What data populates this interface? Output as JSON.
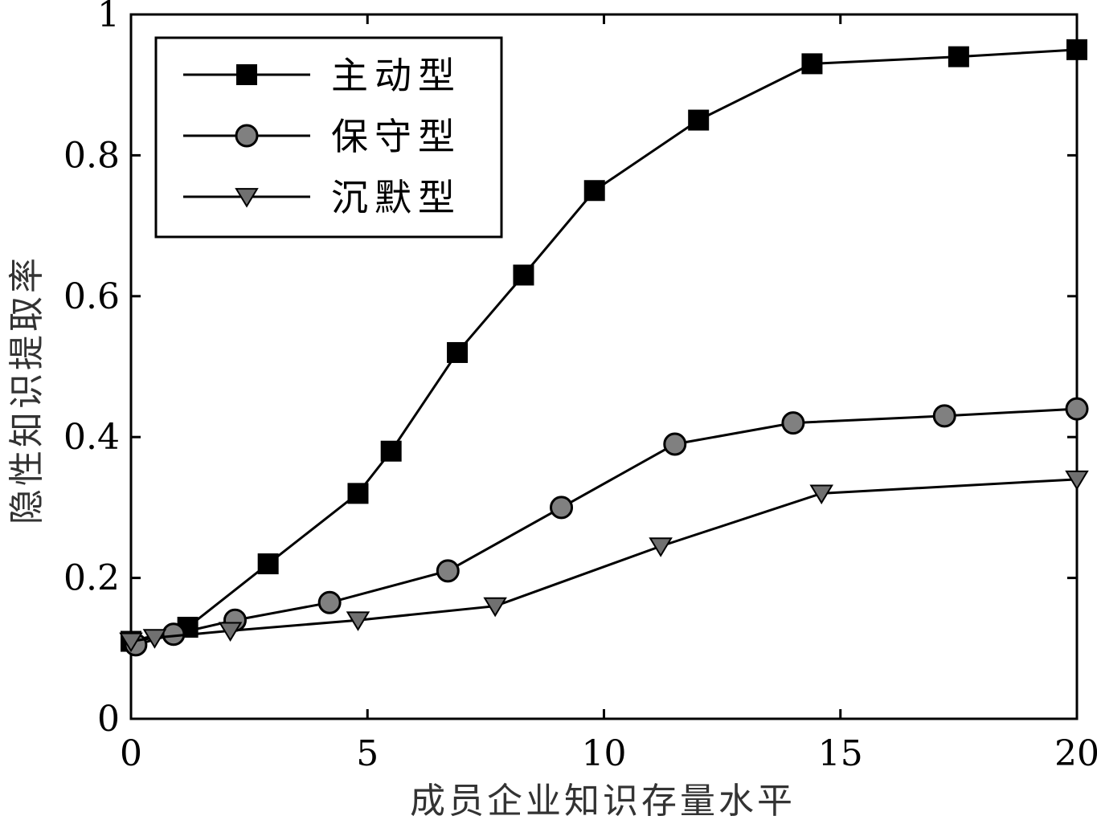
{
  "chart_data": {
    "type": "line",
    "title": "",
    "xlabel": "成员企业知识存量水平",
    "ylabel": "隐性知识提取率",
    "xlim": [
      0,
      20
    ],
    "ylim": [
      0,
      1
    ],
    "xticks": [
      0,
      5,
      10,
      15,
      20
    ],
    "xtick_labels": [
      "0",
      "5",
      "10",
      "15",
      "20"
    ],
    "yticks": [
      0,
      0.2,
      0.4,
      0.6,
      0.8,
      1
    ],
    "ytick_labels": [
      "0",
      "0.2",
      "0.4",
      "0.6",
      "0.8",
      "1"
    ],
    "grid": false,
    "legend_position": "top-left",
    "series": [
      {
        "name": "主动型",
        "marker": "square",
        "marker_color": "#000000",
        "line_color": "#000000",
        "x": [
          0,
          1.2,
          2.9,
          4.8,
          5.5,
          6.9,
          8.3,
          9.8,
          12.0,
          14.4,
          17.5,
          20.0
        ],
        "y": [
          0.11,
          0.13,
          0.22,
          0.32,
          0.38,
          0.52,
          0.63,
          0.75,
          0.85,
          0.93,
          0.94,
          0.95
        ]
      },
      {
        "name": "保守型",
        "marker": "circle",
        "marker_color": "#808080",
        "line_color": "#000000",
        "x": [
          0.1,
          0.9,
          2.2,
          4.2,
          6.7,
          9.1,
          11.5,
          14.0,
          17.2,
          20.0
        ],
        "y": [
          0.105,
          0.12,
          0.14,
          0.165,
          0.21,
          0.3,
          0.39,
          0.42,
          0.43,
          0.44
        ]
      },
      {
        "name": "沉默型",
        "marker": "triangle-down",
        "marker_color": "#707070",
        "line_color": "#000000",
        "x": [
          0,
          0.5,
          2.1,
          4.8,
          7.7,
          11.2,
          14.6,
          20.0
        ],
        "y": [
          0.11,
          0.115,
          0.125,
          0.14,
          0.16,
          0.245,
          0.32,
          0.34
        ]
      }
    ]
  }
}
